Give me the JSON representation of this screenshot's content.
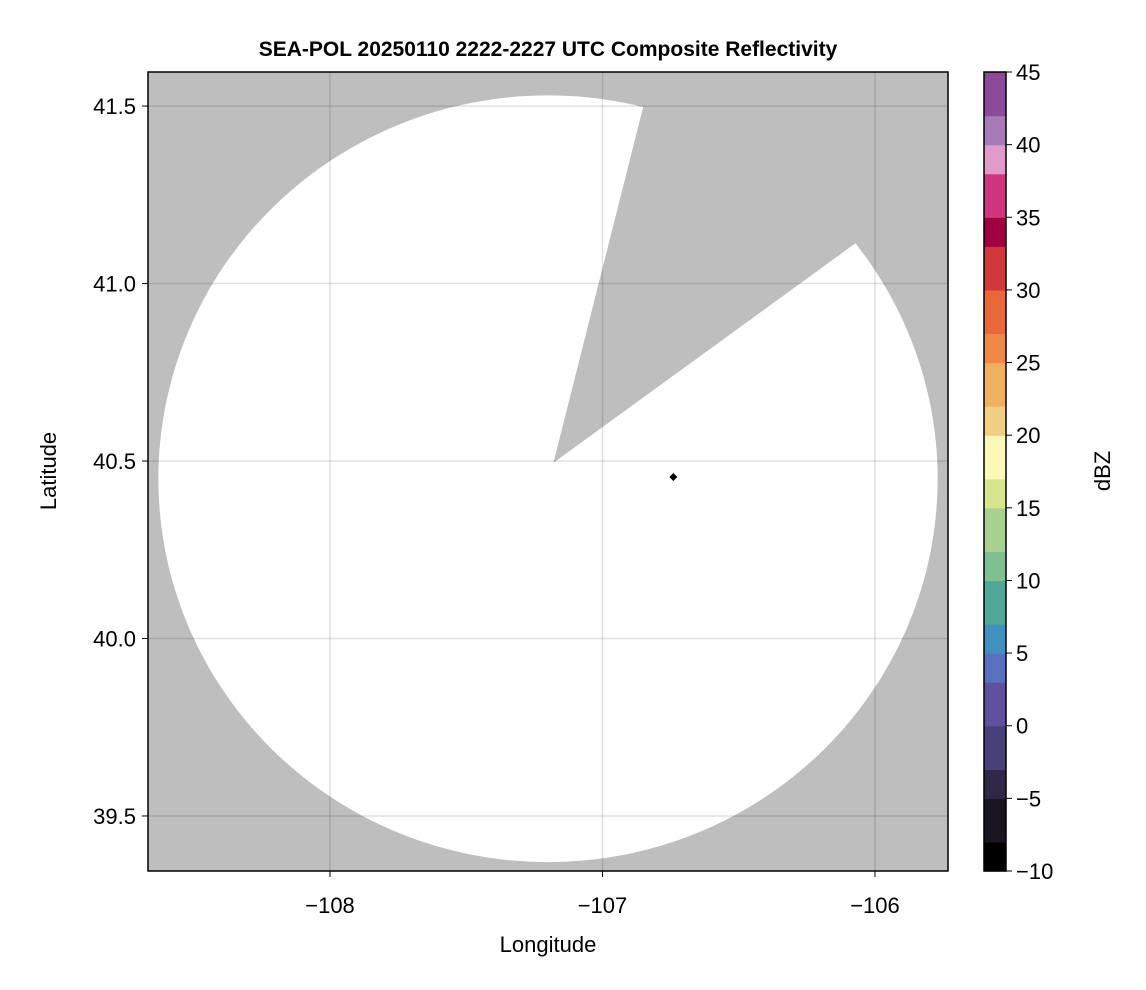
{
  "chart_data": {
    "type": "heatmap",
    "title": "SEA-POL 20250110 2222-2227 UTC Composite Reflectivity",
    "xlabel": "Longitude",
    "ylabel": "Latitude",
    "xlim": [
      -108.668,
      -105.732
    ],
    "ylim": [
      39.345,
      41.596
    ],
    "xticks": [
      -108,
      -107,
      -106
    ],
    "xtick_labels": [
      "−108",
      "−107",
      "−106"
    ],
    "yticks": [
      39.5,
      40.0,
      40.5,
      41.0,
      41.5
    ],
    "ytick_labels": [
      "39.5",
      "40.0",
      "40.5",
      "41.0",
      "41.5"
    ],
    "grid": true,
    "background_color": "#bebebe",
    "coverage_color": "#ffffff",
    "coverage": {
      "description_shape": "radar coverage disk with blocked wedge",
      "center": [
        -107.2,
        40.45
      ],
      "radius_lon": 1.43,
      "radius_lat": 1.08,
      "wedge_apex": [
        -107.18,
        40.495
      ],
      "wedge_edge_points": [
        [
          -106.84,
          41.53
        ],
        [
          -106.06,
          41.12
        ]
      ]
    },
    "markers": [
      {
        "lon": -106.74,
        "lat": 40.455,
        "shape": "diamond",
        "color": "#000000"
      }
    ],
    "colorbar": {
      "label": "dBZ",
      "range": [
        -10,
        45
      ],
      "ticks": [
        -10,
        -5,
        0,
        5,
        10,
        15,
        20,
        25,
        30,
        35,
        40,
        45
      ],
      "tick_labels": [
        "−10",
        "−5",
        "0",
        "5",
        "10",
        "15",
        "20",
        "25",
        "30",
        "35",
        "40",
        "45"
      ],
      "colors": [
        [
          -10,
          "#000000"
        ],
        [
          -8,
          "#181420"
        ],
        [
          -5,
          "#302848"
        ],
        [
          -3,
          "#484078"
        ],
        [
          0,
          "#6050a0"
        ],
        [
          3,
          "#5870c0"
        ],
        [
          5,
          "#4090c0"
        ],
        [
          7,
          "#50a898"
        ],
        [
          10,
          "#80c090"
        ],
        [
          12,
          "#a8d090"
        ],
        [
          15,
          "#d7e58f"
        ],
        [
          17,
          "#fbf8b8"
        ],
        [
          20,
          "#f0d080"
        ],
        [
          22,
          "#f0b060"
        ],
        [
          25,
          "#f08848"
        ],
        [
          27,
          "#e8683a"
        ],
        [
          30,
          "#d0383c"
        ],
        [
          33,
          "#a00040"
        ],
        [
          35,
          "#d0367f"
        ],
        [
          38,
          "#e09bcb"
        ],
        [
          40,
          "#a77ab8"
        ],
        [
          42,
          "#8e4a9a"
        ],
        [
          45,
          "#3f0a4d"
        ]
      ]
    }
  }
}
